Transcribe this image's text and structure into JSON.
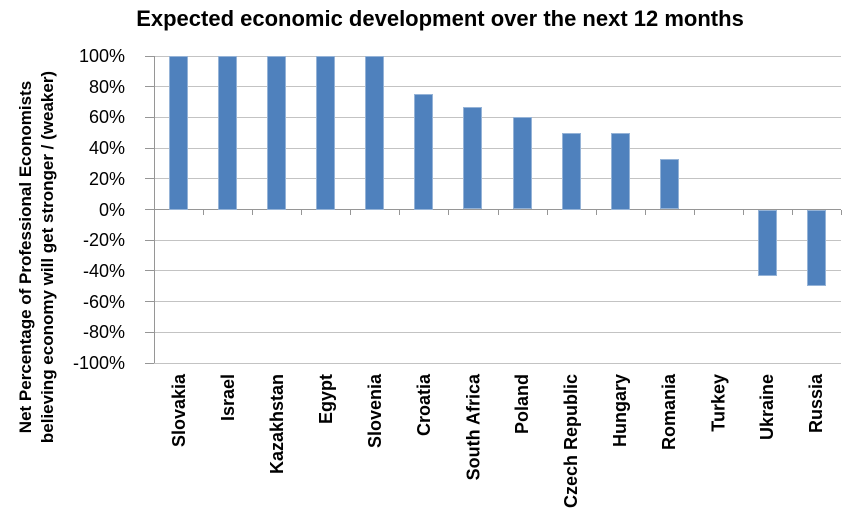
{
  "chart_data": {
    "type": "bar",
    "title": "Expected economic development over the next 12 months",
    "ylabel_line1": "Net Percentage of Professional Economists",
    "ylabel_line2": "believing economy will get stronger / (weaker)",
    "categories": [
      "Slovakia",
      "Israel",
      "Kazakhstan",
      "Egypt",
      "Slovenia",
      "Croatia",
      "South Africa",
      "Poland",
      "Czech Republic",
      "Hungary",
      "Romania",
      "Turkey",
      "Ukraine",
      "Russia"
    ],
    "values": [
      100,
      100,
      100,
      100,
      100,
      75,
      67,
      60,
      50,
      50,
      33,
      0,
      -43,
      -50
    ],
    "ylim": [
      -100,
      100
    ],
    "ytick_step": 20,
    "ytick_labels": [
      "100%",
      "80%",
      "60%",
      "40%",
      "20%",
      "0%",
      "-20%",
      "-40%",
      "-60%",
      "-80%",
      "-100%"
    ],
    "grid": true,
    "legend": "none",
    "colors": {
      "bar_fill": "#4F81BD",
      "bar_border": "#95B3D7",
      "gridline": "#C3C3C3",
      "axis": "#969696",
      "text": "#000000"
    }
  }
}
